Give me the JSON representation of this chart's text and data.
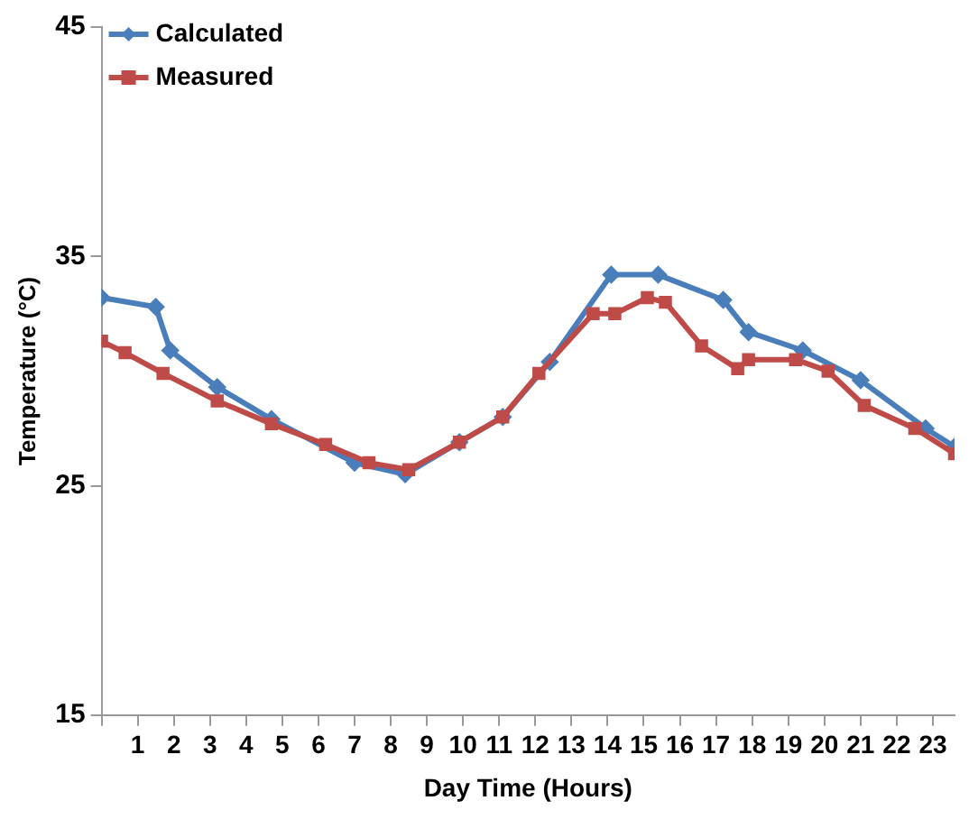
{
  "chart_data": {
    "type": "line",
    "xlabel": "Day Time (Hours)",
    "ylabel": "Temperature (°C)",
    "xlim": [
      0,
      23.6
    ],
    "xticks": [
      {
        "value": 0,
        "label": null
      },
      1,
      2,
      3,
      4,
      5,
      6,
      7,
      8,
      9,
      10,
      11,
      12,
      13,
      14,
      15,
      16,
      17,
      18,
      19,
      20,
      21,
      22,
      23
    ],
    "ylim": [
      15,
      45
    ],
    "yticks": [
      15,
      25,
      35,
      45
    ],
    "grid": false,
    "legend": "top left",
    "line_style": "solid",
    "series": [
      {
        "name": "Calculated",
        "color": "#4a7ebb",
        "marker": "diamond",
        "x": [
          0,
          1.5,
          1.9,
          3.2,
          4.7,
          7,
          8.4,
          9.9,
          11.1,
          12.4,
          14.1,
          15.4,
          17.2,
          17.9,
          19.4,
          21,
          22.8,
          23.6
        ],
        "values": [
          33.2,
          32.8,
          30.9,
          29.3,
          27.9,
          26.0,
          25.5,
          26.9,
          28.0,
          30.4,
          34.2,
          34.2,
          33.1,
          31.7,
          30.9,
          29.6,
          27.5,
          26.7
        ]
      },
      {
        "name": "Measured",
        "color": "#be4b48",
        "marker": "square",
        "x": [
          0,
          0.65,
          1.7,
          3.2,
          4.7,
          6.2,
          7.4,
          8.5,
          9.9,
          11.1,
          12.1,
          13.6,
          14.2,
          15.1,
          15.6,
          16.6,
          17.6,
          17.9,
          19.2,
          20.1,
          21.1,
          22.5,
          23.6
        ],
        "values": [
          31.3,
          30.8,
          29.9,
          28.7,
          27.7,
          26.8,
          26.0,
          25.7,
          26.9,
          28.0,
          29.9,
          32.5,
          32.5,
          33.2,
          33.0,
          31.1,
          30.1,
          30.5,
          30.5,
          30.0,
          28.5,
          27.5,
          26.4
        ]
      }
    ]
  }
}
